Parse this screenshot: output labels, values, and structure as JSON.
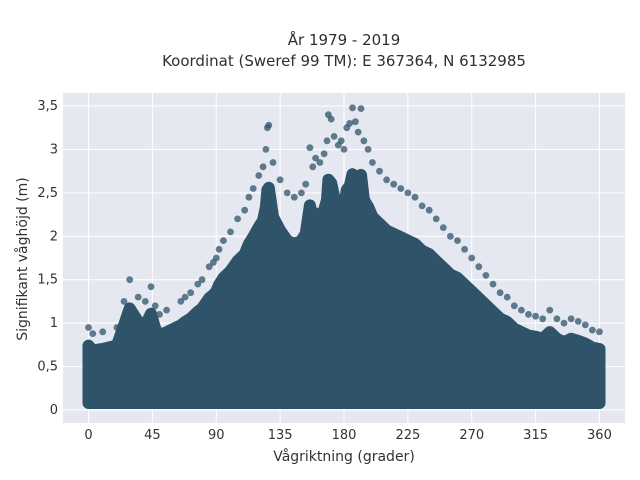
{
  "chart_data": {
    "type": "scatter",
    "title_line1": "År 1979 - 2019",
    "title_line2": "Koordinat (Sweref 99 TM): E 367364, N 6132985",
    "xlabel": "Vågriktning (grader)",
    "ylabel": "Signifikant våghöjd (m)",
    "xlim": [
      -18,
      378
    ],
    "ylim": [
      -0.15,
      3.65
    ],
    "x_ticks": [
      0,
      45,
      90,
      135,
      180,
      225,
      270,
      315,
      360
    ],
    "x_tick_labels": [
      "0",
      "45",
      "90",
      "135",
      "180",
      "225",
      "270",
      "315",
      "360"
    ],
    "y_ticks": [
      0,
      0.5,
      1,
      1.5,
      2,
      2.5,
      3,
      3.5
    ],
    "y_tick_labels": [
      "0",
      "0,5",
      "1",
      "1,5",
      "2",
      "2,5",
      "3",
      "3,5"
    ],
    "grid": true,
    "marker_color": "#2f5469",
    "background_color": "#e5e8f0",
    "points": [
      [
        0,
        0.95
      ],
      [
        3,
        0.88
      ],
      [
        10,
        0.9
      ],
      [
        20,
        0.95
      ],
      [
        25,
        1.25
      ],
      [
        29,
        1.5
      ],
      [
        35,
        1.3
      ],
      [
        40,
        1.25
      ],
      [
        44,
        1.42
      ],
      [
        47,
        1.2
      ],
      [
        50,
        1.1
      ],
      [
        55,
        1.15
      ],
      [
        65,
        1.25
      ],
      [
        68,
        1.3
      ],
      [
        72,
        1.35
      ],
      [
        77,
        1.45
      ],
      [
        80,
        1.5
      ],
      [
        85,
        1.65
      ],
      [
        88,
        1.7
      ],
      [
        90,
        1.75
      ],
      [
        92,
        1.85
      ],
      [
        95,
        1.95
      ],
      [
        100,
        2.05
      ],
      [
        105,
        2.2
      ],
      [
        110,
        2.3
      ],
      [
        113,
        2.45
      ],
      [
        116,
        2.55
      ],
      [
        120,
        2.7
      ],
      [
        123,
        2.8
      ],
      [
        125,
        3.0
      ],
      [
        126,
        3.25
      ],
      [
        127,
        3.28
      ],
      [
        130,
        2.85
      ],
      [
        135,
        2.65
      ],
      [
        140,
        2.5
      ],
      [
        145,
        2.45
      ],
      [
        150,
        2.5
      ],
      [
        153,
        2.6
      ],
      [
        156,
        3.02
      ],
      [
        158,
        2.8
      ],
      [
        160,
        2.9
      ],
      [
        163,
        2.85
      ],
      [
        166,
        2.95
      ],
      [
        168,
        3.1
      ],
      [
        169,
        3.4
      ],
      [
        171,
        3.35
      ],
      [
        173,
        3.15
      ],
      [
        176,
        3.05
      ],
      [
        178,
        3.1
      ],
      [
        180,
        3.0
      ],
      [
        182,
        3.25
      ],
      [
        184,
        3.3
      ],
      [
        186,
        3.48
      ],
      [
        188,
        3.32
      ],
      [
        190,
        3.2
      ],
      [
        192,
        3.47
      ],
      [
        194,
        3.1
      ],
      [
        197,
        3.0
      ],
      [
        200,
        2.85
      ],
      [
        205,
        2.75
      ],
      [
        210,
        2.65
      ],
      [
        215,
        2.6
      ],
      [
        220,
        2.55
      ],
      [
        225,
        2.5
      ],
      [
        230,
        2.45
      ],
      [
        235,
        2.35
      ],
      [
        240,
        2.3
      ],
      [
        245,
        2.2
      ],
      [
        250,
        2.1
      ],
      [
        255,
        2.0
      ],
      [
        260,
        1.95
      ],
      [
        265,
        1.85
      ],
      [
        270,
        1.75
      ],
      [
        275,
        1.65
      ],
      [
        280,
        1.55
      ],
      [
        285,
        1.45
      ],
      [
        290,
        1.35
      ],
      [
        295,
        1.3
      ],
      [
        300,
        1.2
      ],
      [
        305,
        1.15
      ],
      [
        310,
        1.1
      ],
      [
        315,
        1.08
      ],
      [
        320,
        1.05
      ],
      [
        325,
        1.15
      ],
      [
        330,
        1.05
      ],
      [
        335,
        1.0
      ],
      [
        340,
        1.05
      ],
      [
        345,
        1.02
      ],
      [
        350,
        0.98
      ],
      [
        355,
        0.92
      ],
      [
        360,
        0.9
      ]
    ]
  }
}
